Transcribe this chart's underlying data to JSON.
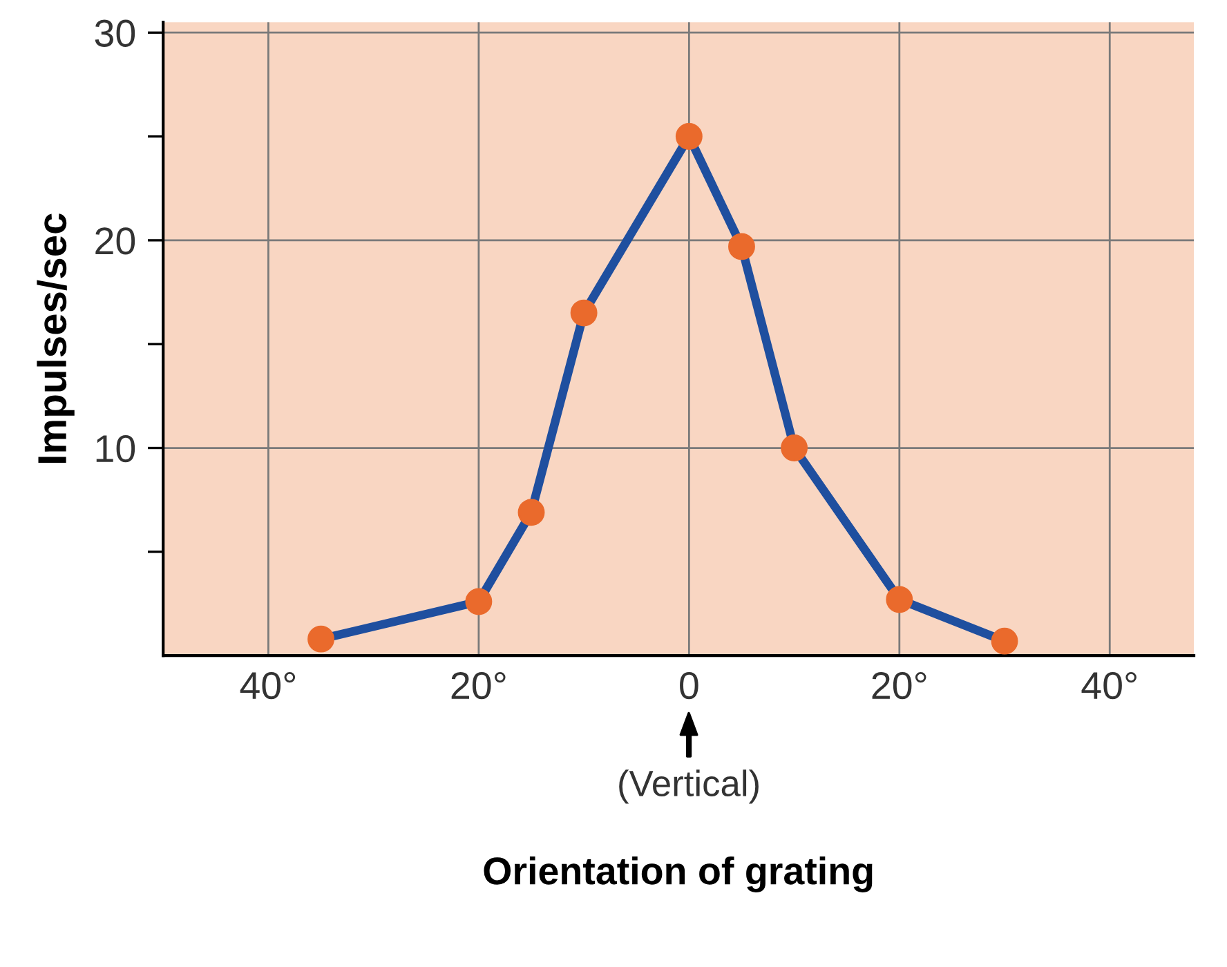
{
  "chart_data": {
    "type": "line",
    "xlabel": "Orientation of grating",
    "ylabel": "Impulses/sec",
    "x": [
      -35,
      -20,
      -15,
      -10,
      0,
      5,
      10,
      20,
      30
    ],
    "series": [
      {
        "color": "#1f4f9f",
        "values": [
          0.8,
          2.6,
          6.9,
          16.5,
          25,
          19.7,
          10,
          2.7,
          0.7
        ]
      }
    ],
    "marker": "circle",
    "line_style": "solid",
    "grid": true,
    "xlim": [
      -50,
      48
    ],
    "xticks": [
      {
        "value": -40,
        "label": "40°"
      },
      {
        "value": -20,
        "label": "20°"
      },
      0,
      {
        "value": 20,
        "label": "20°"
      },
      {
        "value": 40,
        "label": "40°"
      }
    ],
    "ylim": [
      0,
      30.5
    ],
    "yticks": [
      {
        "value": 5,
        "label": null
      },
      10,
      {
        "value": 15,
        "label": null
      },
      20,
      {
        "value": 25,
        "label": null
      },
      30
    ],
    "annotations": [
      "(Vertical)"
    ]
  }
}
